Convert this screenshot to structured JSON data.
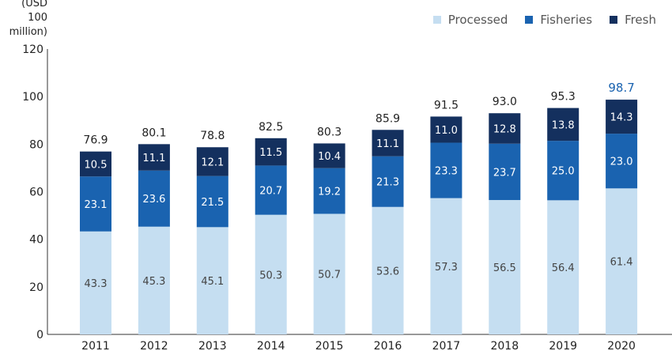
{
  "unit_label": "(USD 100\nmillion)",
  "legend": [
    {
      "label": "Processed",
      "color": "#c5def1"
    },
    {
      "label": "Fisheries",
      "color": "#1a63b0"
    },
    {
      "label": "Fresh",
      "color": "#14305e"
    }
  ],
  "chart_data": {
    "type": "bar",
    "stacked": true,
    "categories": [
      "2011",
      "2012",
      "2013",
      "2014",
      "2015",
      "2016",
      "2017",
      "2018",
      "2019",
      "2020"
    ],
    "series": [
      {
        "name": "Processed",
        "color": "#c5def1",
        "label_color": "#444444",
        "values": [
          43.3,
          45.3,
          45.1,
          50.3,
          50.7,
          53.6,
          57.3,
          56.5,
          56.4,
          61.4
        ]
      },
      {
        "name": "Fisheries",
        "color": "#1a63b0",
        "label_color": "#ffffff",
        "values": [
          23.1,
          23.6,
          21.5,
          20.7,
          19.2,
          21.3,
          23.3,
          23.7,
          25.0,
          23.0
        ]
      },
      {
        "name": "Fresh",
        "color": "#14305e",
        "label_color": "#ffffff",
        "values": [
          10.5,
          11.1,
          12.1,
          11.5,
          10.4,
          11.1,
          11.0,
          12.8,
          13.8,
          14.3
        ]
      }
    ],
    "totals": [
      "76.9",
      "80.1",
      "78.8",
      "82.5",
      "80.3",
      "85.9",
      "91.5",
      "93.0",
      "95.3",
      "98.7"
    ],
    "highlight_total_color": "#1a63b0",
    "ylim": [
      0,
      120
    ],
    "yticks": [
      0,
      20,
      40,
      60,
      80,
      100,
      120
    ],
    "ylabel": "(USD 100 million)",
    "xlabel": "",
    "legend_position": "top-right",
    "grid": false
  }
}
